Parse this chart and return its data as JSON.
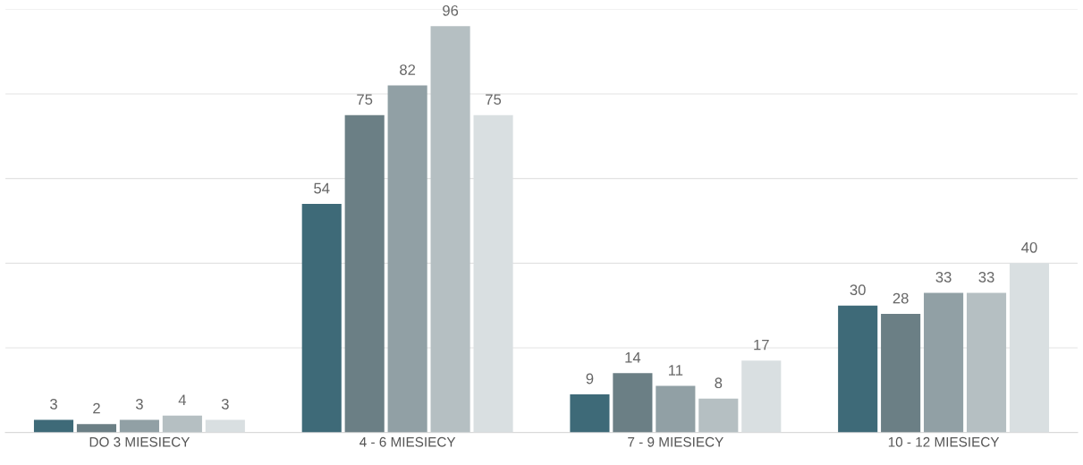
{
  "chart_data": {
    "type": "bar",
    "categories": [
      "DO 3 MIESIECY",
      "4 - 6 MIESIECY",
      "7 - 9 MIESIECY",
      "10 - 12 MIESIECY"
    ],
    "series": [
      {
        "color": "#3e6a78",
        "values": [
          3,
          54,
          9,
          30
        ]
      },
      {
        "color": "#6b7f85",
        "values": [
          2,
          75,
          14,
          28
        ]
      },
      {
        "color": "#91a0a5",
        "values": [
          3,
          82,
          11,
          33
        ]
      },
      {
        "color": "#b5bfc2",
        "values": [
          4,
          96,
          8,
          33
        ]
      },
      {
        "color": "#d9dfe1",
        "values": [
          3,
          75,
          17,
          40
        ]
      }
    ],
    "ylim": [
      0,
      100
    ],
    "yticks": [
      {
        "value": 0,
        "label": null
      },
      {
        "value": 20,
        "label": null
      },
      {
        "value": 40,
        "label": null
      },
      {
        "value": 60,
        "label": null
      },
      {
        "value": 80,
        "label": null
      },
      {
        "value": 100,
        "label": null
      }
    ],
    "grid": "y",
    "data_labels": true
  }
}
